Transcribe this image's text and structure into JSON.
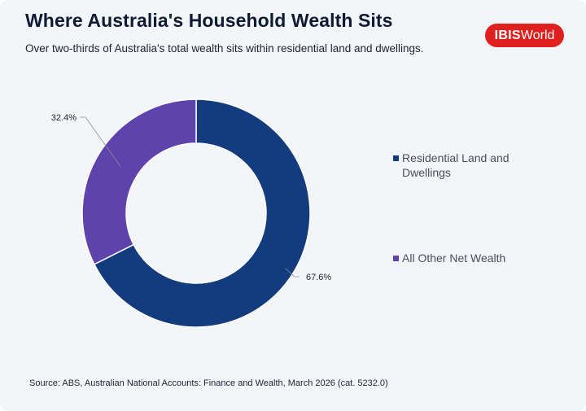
{
  "header": {
    "title": "Where Australia's Household Wealth Sits",
    "subtitle": "Over two-thirds of Australia's total wealth sits within residential land and dwellings."
  },
  "logo": {
    "bold": "IBIS",
    "regular": "World",
    "color": "#e0201e"
  },
  "chart_data": {
    "type": "pie",
    "variant": "donut",
    "title": "Where Australia's Household Wealth Sits",
    "subtitle": "Over two-thirds of Australia's total wealth sits within residential land and dwellings.",
    "series": [
      {
        "name": "Residential Land and Dwellings",
        "value": 67.6,
        "label": "67.6%",
        "color": "#133c7f"
      },
      {
        "name": "All Other Net Wealth",
        "value": 32.4,
        "label": "32.4%",
        "color": "#5e43ad"
      }
    ],
    "legend_position": "right",
    "start_angle": "12 o'clock, clockwise"
  },
  "footer": {
    "source": "Source: ABS, Australian National Accounts: Finance and Wealth, March 2026 (cat. 5232.0)"
  }
}
